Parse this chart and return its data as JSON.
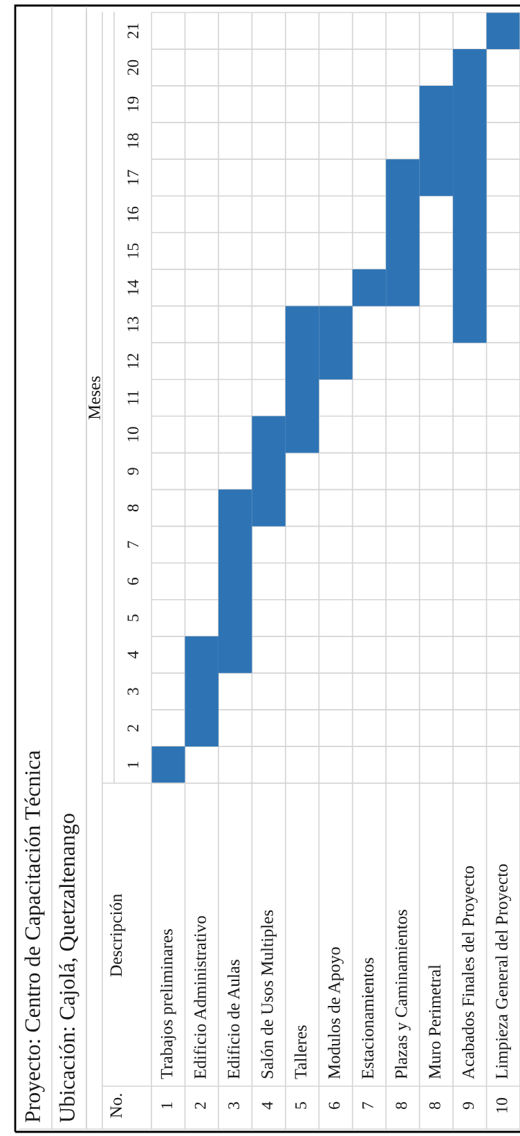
{
  "chart_data": {
    "type": "bar",
    "title": "Proyecto: Centro de Capacitación Técnica",
    "subtitle": "Ubicación: Cajolá, Quetzaltenango",
    "ylabel": "Meses",
    "categories": [
      "Trabajos preliminares",
      "Edificio Administrativo",
      "Edificio de Aulas",
      "Salón de Usos Multiples",
      "Talleres",
      "Modulos de Apoyo",
      "Estacionamientos",
      "Plazas y Caminamientos",
      "Muro Perimetral",
      "Acabados Finales del Proyecto",
      "Limpieza General del Proyecto"
    ],
    "values": [
      1,
      3,
      5,
      3,
      4,
      2,
      1,
      4,
      3,
      8,
      1
    ],
    "base": [
      0,
      1,
      3,
      7,
      9,
      11,
      13,
      13,
      16,
      12,
      20
    ],
    "color": "#2e74b5",
    "ylim": [
      0,
      21
    ],
    "yticks": [
      1,
      2,
      3,
      4,
      5,
      6,
      7,
      8,
      9,
      10,
      11,
      12,
      13,
      14,
      15,
      16,
      17,
      18,
      19,
      20,
      21
    ],
    "grid": true,
    "annotations": [
      "No.",
      "Descripción",
      "1",
      "2",
      "3",
      "4",
      "5",
      "6",
      "7",
      "8",
      "8",
      "9",
      "10"
    ]
  }
}
